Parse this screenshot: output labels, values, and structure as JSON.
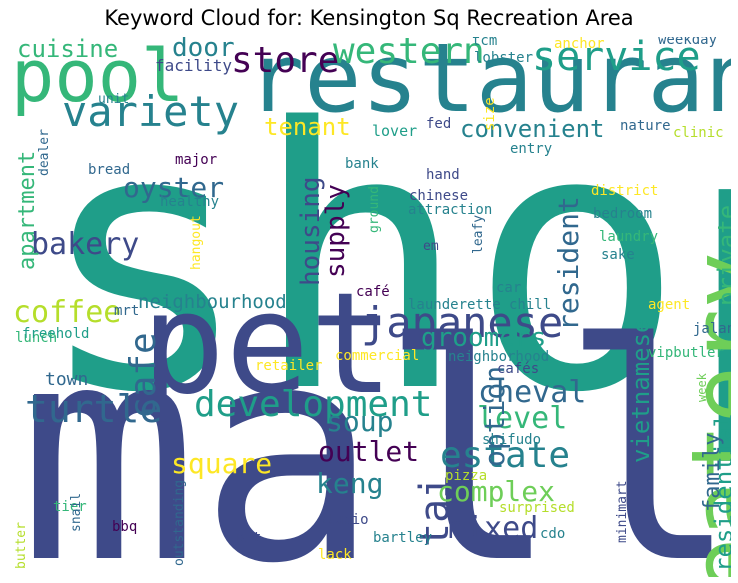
{
  "title": "Keyword Cloud for: Kensington Sq Recreation Area",
  "palette": {
    "dark_purple": "#440154",
    "indigo": "#3e4a89",
    "blue": "#31688e",
    "teal": "#26828e",
    "green_teal": "#1f9e89",
    "green": "#35b779",
    "light_green": "#6ece58",
    "lime": "#b5de2b",
    "yellow": "#fde725"
  },
  "words": [
    {
      "text": "shop",
      "color": "#1f9e89",
      "vertical": false
    },
    {
      "text": "mall",
      "color": "#3e4a89",
      "vertical": false
    },
    {
      "text": "restaurant",
      "color": "#26828e",
      "vertical": false
    },
    {
      "text": "pet",
      "color": "#3e4a89",
      "vertical": false
    },
    {
      "text": "pool",
      "color": "#35b779",
      "vertical": false
    },
    {
      "text": "eatery",
      "color": "#6ece58",
      "vertical": true
    },
    {
      "text": "japanese",
      "color": "#3e4a89",
      "vertical": false
    },
    {
      "text": "service",
      "color": "#1f9e89",
      "vertical": false
    },
    {
      "text": "variety",
      "color": "#26828e",
      "vertical": false
    },
    {
      "text": "store",
      "color": "#440154",
      "vertical": false
    },
    {
      "text": "western",
      "color": "#35b779",
      "vertical": false
    },
    {
      "text": "development",
      "color": "#1f9e89",
      "vertical": false
    },
    {
      "text": "turtle",
      "color": "#31688e",
      "vertical": false
    },
    {
      "text": "estate",
      "color": "#26828e",
      "vertical": false
    },
    {
      "text": "bakery",
      "color": "#3e4a89",
      "vertical": false
    },
    {
      "text": "coffee",
      "color": "#b5de2b",
      "vertical": false
    },
    {
      "text": "cafe",
      "color": "#31688e",
      "vertical": true
    },
    {
      "text": "housing",
      "color": "#3e4a89",
      "vertical": true
    },
    {
      "text": "supply",
      "color": "#440154",
      "vertical": true
    },
    {
      "text": "cheval",
      "color": "#31688e",
      "vertical": false
    },
    {
      "text": "level",
      "color": "#35b779",
      "vertical": false
    },
    {
      "text": "soup",
      "color": "#26828e",
      "vertical": false
    },
    {
      "text": "outlet",
      "color": "#440154",
      "vertical": false
    },
    {
      "text": "tai",
      "color": "#3e4a89",
      "vertical": true
    },
    {
      "text": "complex",
      "color": "#6ece58",
      "vertical": false
    },
    {
      "text": "mixed",
      "color": "#3e4a89",
      "vertical": false
    },
    {
      "text": "square",
      "color": "#fde725",
      "vertical": false
    },
    {
      "text": "keng",
      "color": "#26828e",
      "vertical": false
    },
    {
      "text": "option",
      "color": "#31688e",
      "vertical": true
    },
    {
      "text": "resident",
      "color": "#31688e",
      "vertical": true
    },
    {
      "text": "vietnamese",
      "color": "#1f9e89",
      "vertical": true
    },
    {
      "text": "private",
      "color": "#35b779",
      "vertical": true
    },
    {
      "text": "residential",
      "color": "#1f9e89",
      "vertical": true
    },
    {
      "text": "family",
      "color": "#31688e",
      "vertical": true
    },
    {
      "text": "groomers",
      "color": "#1f9e89",
      "vertical": false
    },
    {
      "text": "convenient",
      "color": "#26828e",
      "vertical": false
    },
    {
      "text": "oyster",
      "color": "#31688e",
      "vertical": false
    },
    {
      "text": "apartment",
      "color": "#35b779",
      "vertical": true
    },
    {
      "text": "cuisine",
      "color": "#35b779",
      "vertical": false
    },
    {
      "text": "door",
      "color": "#26828e",
      "vertical": false
    },
    {
      "text": "tenant",
      "color": "#fde725",
      "vertical": false
    },
    {
      "text": "neighbourhood",
      "color": "#26828e",
      "vertical": false
    },
    {
      "text": "town",
      "color": "#31688e",
      "vertical": false
    },
    {
      "text": "facility",
      "color": "#3e4a89",
      "vertical": false
    },
    {
      "text": "tcm",
      "color": "#26828e",
      "vertical": false
    },
    {
      "text": "lobster",
      "color": "#26828e",
      "vertical": false
    },
    {
      "text": "anchor",
      "color": "#fde725",
      "vertical": false
    },
    {
      "text": "weekday",
      "color": "#31688e",
      "vertical": false
    },
    {
      "text": "unit",
      "color": "#26828e",
      "vertical": false
    },
    {
      "text": "size",
      "color": "#fde725",
      "vertical": true
    },
    {
      "text": "lover",
      "color": "#1f9e89",
      "vertical": false
    },
    {
      "text": "fed",
      "color": "#3e4a89",
      "vertical": false
    },
    {
      "text": "nature",
      "color": "#31688e",
      "vertical": false
    },
    {
      "text": "clinic",
      "color": "#b5de2b",
      "vertical": false
    },
    {
      "text": "entry",
      "color": "#26828e",
      "vertical": false
    },
    {
      "text": "major",
      "color": "#440154",
      "vertical": false
    },
    {
      "text": "bank",
      "color": "#26828e",
      "vertical": false
    },
    {
      "text": "hand",
      "color": "#3e4a89",
      "vertical": false
    },
    {
      "text": "bread",
      "color": "#31688e",
      "vertical": false
    },
    {
      "text": "healthy",
      "color": "#26828e",
      "vertical": false
    },
    {
      "text": "dealer",
      "color": "#31688e",
      "vertical": true
    },
    {
      "text": "ground",
      "color": "#35b779",
      "vertical": true
    },
    {
      "text": "chinese",
      "color": "#3e4a89",
      "vertical": false
    },
    {
      "text": "attraction",
      "color": "#26828e",
      "vertical": false
    },
    {
      "text": "district",
      "color": "#fde725",
      "vertical": false
    },
    {
      "text": "bedroom",
      "color": "#26828e",
      "vertical": false
    },
    {
      "text": "laundry",
      "color": "#35b779",
      "vertical": false
    },
    {
      "text": "sake",
      "color": "#26828e",
      "vertical": false
    },
    {
      "text": "leafy",
      "color": "#31688e",
      "vertical": true
    },
    {
      "text": "em",
      "color": "#3e4a89",
      "vertical": false
    },
    {
      "text": "hangout",
      "color": "#fde725",
      "vertical": true
    },
    {
      "text": "café",
      "color": "#440154",
      "vertical": false
    },
    {
      "text": "car",
      "color": "#26828e",
      "vertical": false
    },
    {
      "text": "mrt",
      "color": "#31688e",
      "vertical": false
    },
    {
      "text": "launderette",
      "color": "#26828e",
      "vertical": false
    },
    {
      "text": "chill",
      "color": "#26828e",
      "vertical": false
    },
    {
      "text": "agent",
      "color": "#fde725",
      "vertical": false
    },
    {
      "text": "jalan",
      "color": "#31688e",
      "vertical": false
    },
    {
      "text": "lunch",
      "color": "#35b779",
      "vertical": false
    },
    {
      "text": "freehold",
      "color": "#1f9e89",
      "vertical": false
    },
    {
      "text": "commercial",
      "color": "#fde725",
      "vertical": false
    },
    {
      "text": "neighborhood",
      "color": "#26828e",
      "vertical": false
    },
    {
      "text": "vipbutler",
      "color": "#35b779",
      "vertical": false
    },
    {
      "text": "retailer",
      "color": "#fde725",
      "vertical": false
    },
    {
      "text": "cafés",
      "color": "#3e4a89",
      "vertical": false
    },
    {
      "text": "week",
      "color": "#6ece58",
      "vertical": true
    },
    {
      "text": "shifudo",
      "color": "#26828e",
      "vertical": false
    },
    {
      "text": "pizza",
      "color": "#b5de2b",
      "vertical": false
    },
    {
      "text": "surprised",
      "color": "#b5de2b",
      "vertical": false
    },
    {
      "text": "outstanding",
      "color": "#31688e",
      "vertical": true
    },
    {
      "text": "tier",
      "color": "#35b779",
      "vertical": false
    },
    {
      "text": "snail",
      "color": "#31688e",
      "vertical": true
    },
    {
      "text": "bbq",
      "color": "#440154",
      "vertical": false
    },
    {
      "text": "studio",
      "color": "#3e4a89",
      "vertical": false
    },
    {
      "text": "pit",
      "color": "#3e4a89",
      "vertical": false
    },
    {
      "text": "bartley",
      "color": "#26828e",
      "vertical": false
    },
    {
      "text": "cdo",
      "color": "#26828e",
      "vertical": false
    },
    {
      "text": "minimart",
      "color": "#3e4a89",
      "vertical": true
    },
    {
      "text": "butter",
      "color": "#b5de2b",
      "vertical": true
    },
    {
      "text": "lack",
      "color": "#fde725",
      "vertical": false
    }
  ]
}
